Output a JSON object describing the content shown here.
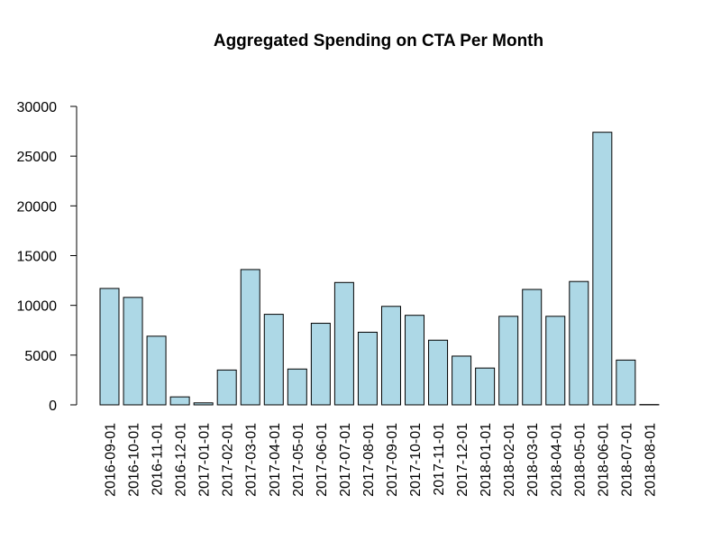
{
  "chart_data": {
    "type": "bar",
    "title": "Aggregated Spending on CTA Per Month",
    "xlabel": "",
    "ylabel": "",
    "ylim": [
      0,
      30000
    ],
    "yticks": [
      0,
      5000,
      10000,
      15000,
      20000,
      25000,
      30000
    ],
    "grid": false,
    "bar_color": "#add8e6",
    "categories": [
      "2016-09-01",
      "2016-10-01",
      "2016-11-01",
      "2016-12-01",
      "2017-01-01",
      "2017-02-01",
      "2017-03-01",
      "2017-04-01",
      "2017-05-01",
      "2017-06-01",
      "2017-07-01",
      "2017-08-01",
      "2017-09-01",
      "2017-10-01",
      "2017-11-01",
      "2017-12-01",
      "2018-01-01",
      "2018-02-01",
      "2018-03-01",
      "2018-04-01",
      "2018-05-01",
      "2018-06-01",
      "2018-07-01",
      "2018-08-01"
    ],
    "values": [
      11700,
      10800,
      6900,
      800,
      200,
      3500,
      13600,
      9100,
      3600,
      8200,
      12300,
      7300,
      9900,
      9000,
      6500,
      4900,
      3700,
      8900,
      11600,
      8900,
      12400,
      27400,
      4500,
      30
    ]
  }
}
